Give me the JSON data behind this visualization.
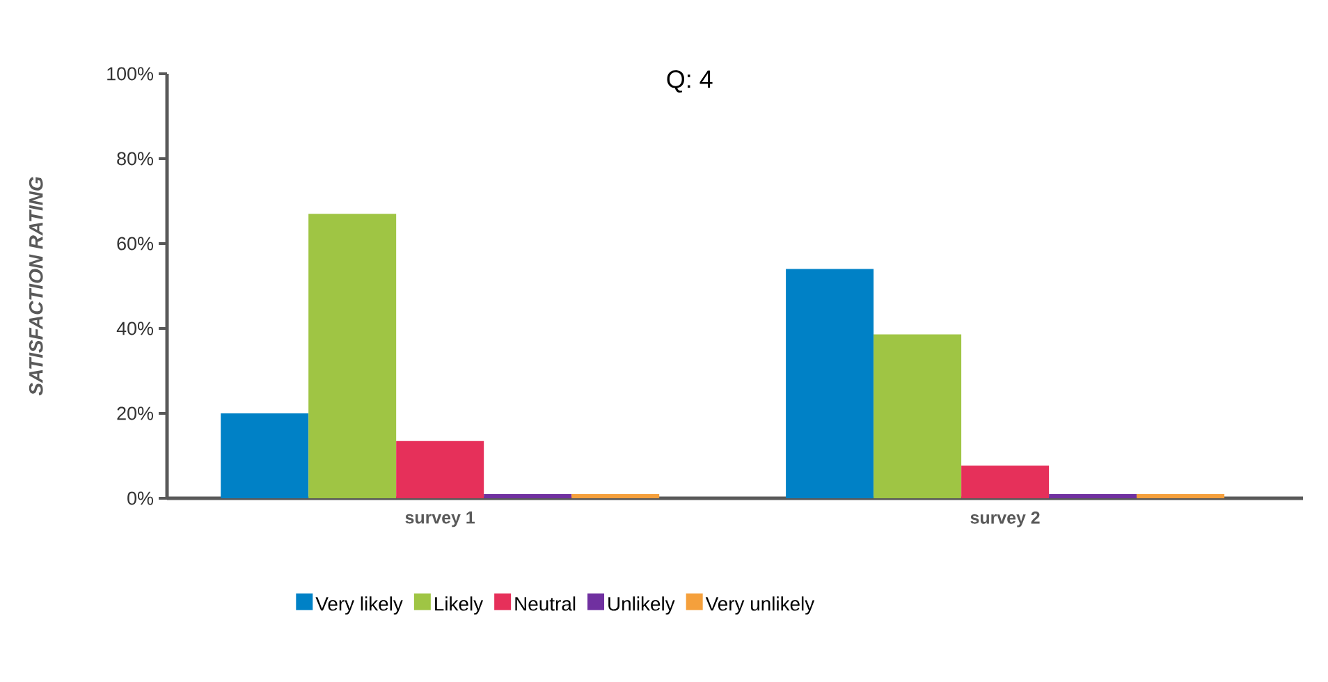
{
  "chart_data": {
    "type": "bar",
    "title": "Q: 4",
    "ylabel": "SATISFACTION RATING",
    "categories": [
      "survey 1",
      "survey 2"
    ],
    "series": [
      {
        "name": "Very likely",
        "color": "#0081c6",
        "values": [
          20,
          54
        ]
      },
      {
        "name": "Likely",
        "color": "#9fc544",
        "values": [
          67,
          38.6
        ]
      },
      {
        "name": "Neutral",
        "color": "#e6305a",
        "values": [
          13.5,
          7.7
        ]
      },
      {
        "name": "Unlikely",
        "color": "#7030a0",
        "values": [
          1,
          1
        ]
      },
      {
        "name": "Very unlikely",
        "color": "#f5a03c",
        "values": [
          1,
          1
        ]
      }
    ],
    "ylim": [
      0,
      100
    ],
    "yticks": [
      {
        "value": 0,
        "label": "0%"
      },
      {
        "value": 20,
        "label": "20%"
      },
      {
        "value": 40,
        "label": "40%"
      },
      {
        "value": 60,
        "label": "60%"
      },
      {
        "value": 80,
        "label": "80%"
      },
      {
        "value": 100,
        "label": "100%"
      }
    ],
    "legend": "bottom"
  }
}
